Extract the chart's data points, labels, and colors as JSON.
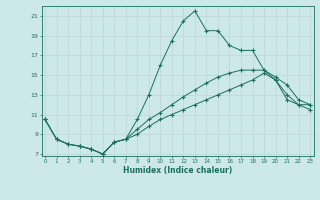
{
  "xlabel": "Humidex (Indice chaleur)",
  "bg_color": "#cde8e8",
  "grid_color": "#c0d8d8",
  "line_color": "#1a7060",
  "xlim": [
    -0.3,
    23.3
  ],
  "ylim": [
    6.8,
    22.0
  ],
  "yticks": [
    7,
    9,
    11,
    13,
    15,
    17,
    19,
    21
  ],
  "xticks": [
    0,
    1,
    2,
    3,
    4,
    5,
    6,
    7,
    8,
    9,
    10,
    11,
    12,
    13,
    14,
    15,
    16,
    17,
    18,
    19,
    20,
    21,
    22,
    23
  ],
  "line1_x": [
    0,
    1,
    2,
    3,
    4,
    5,
    6,
    7,
    8,
    9,
    10,
    11,
    12,
    13,
    14,
    15,
    16,
    17,
    18,
    19,
    20,
    21,
    22,
    23
  ],
  "line1_y": [
    10.5,
    8.5,
    8.0,
    7.8,
    7.5,
    7.0,
    8.2,
    8.5,
    10.5,
    13.0,
    16.0,
    18.5,
    20.5,
    21.5,
    19.5,
    19.5,
    18.0,
    17.5,
    17.5,
    15.5,
    14.5,
    12.5,
    12.0,
    12.0
  ],
  "line2_x": [
    0,
    1,
    2,
    3,
    4,
    5,
    6,
    7,
    8,
    9,
    10,
    11,
    12,
    13,
    14,
    15,
    16,
    17,
    18,
    19,
    20,
    21,
    22,
    23
  ],
  "line2_y": [
    10.5,
    8.5,
    8.0,
    7.8,
    7.5,
    7.0,
    8.2,
    8.5,
    9.5,
    10.5,
    11.2,
    12.0,
    12.8,
    13.5,
    14.2,
    14.8,
    15.2,
    15.5,
    15.5,
    15.5,
    14.8,
    14.0,
    12.5,
    12.0
  ],
  "line3_x": [
    0,
    1,
    2,
    3,
    4,
    5,
    6,
    7,
    8,
    9,
    10,
    11,
    12,
    13,
    14,
    15,
    16,
    17,
    18,
    19,
    20,
    21,
    22,
    23
  ],
  "line3_y": [
    10.5,
    8.5,
    8.0,
    7.8,
    7.5,
    7.0,
    8.2,
    8.5,
    9.0,
    9.8,
    10.5,
    11.0,
    11.5,
    12.0,
    12.5,
    13.0,
    13.5,
    14.0,
    14.5,
    15.2,
    14.5,
    13.0,
    12.0,
    11.5
  ]
}
